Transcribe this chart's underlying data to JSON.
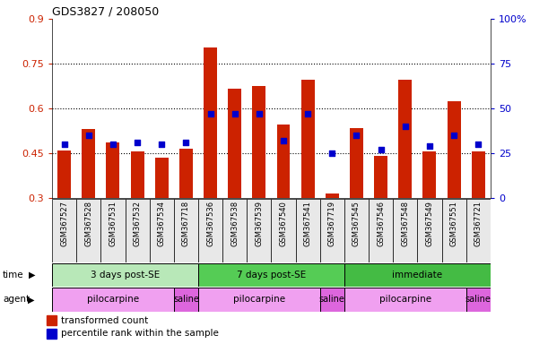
{
  "title": "GDS3827 / 208050",
  "samples": [
    "GSM367527",
    "GSM367528",
    "GSM367531",
    "GSM367532",
    "GSM367534",
    "GSM367718",
    "GSM367536",
    "GSM367538",
    "GSM367539",
    "GSM367540",
    "GSM367541",
    "GSM367719",
    "GSM367545",
    "GSM367546",
    "GSM367548",
    "GSM367549",
    "GSM367551",
    "GSM367721"
  ],
  "bar_values": [
    0.46,
    0.53,
    0.485,
    0.455,
    0.435,
    0.465,
    0.805,
    0.665,
    0.675,
    0.545,
    0.695,
    0.315,
    0.535,
    0.44,
    0.695,
    0.455,
    0.625,
    0.455
  ],
  "dot_values_pct": [
    30,
    35,
    30,
    31,
    30,
    31,
    47,
    47,
    47,
    32,
    47,
    25,
    35,
    27,
    40,
    29,
    35,
    30
  ],
  "ylim": [
    0.3,
    0.9
  ],
  "yticks": [
    0.3,
    0.45,
    0.6,
    0.75,
    0.9
  ],
  "ytick_labels": [
    "0.3",
    "0.45",
    "0.6",
    "0.75",
    "0.9"
  ],
  "y2lim": [
    0,
    100
  ],
  "y2ticks": [
    0,
    25,
    50,
    75,
    100
  ],
  "y2tick_labels": [
    "0",
    "25",
    "50",
    "75",
    "100%"
  ],
  "bar_color": "#cc2200",
  "dot_color": "#0000cc",
  "bar_bottom": 0.3,
  "time_groups": [
    {
      "label": "3 days post-SE",
      "start": 0,
      "end": 6,
      "color": "#b8e8b8"
    },
    {
      "label": "7 days post-SE",
      "start": 6,
      "end": 12,
      "color": "#44cc44"
    },
    {
      "label": "immediate",
      "start": 12,
      "end": 18,
      "color": "#44cc44"
    }
  ],
  "agent_groups": [
    {
      "label": "pilocarpine",
      "start": 0,
      "end": 5,
      "color": "#f0a0f0"
    },
    {
      "label": "saline",
      "start": 5,
      "end": 6,
      "color": "#dd66dd"
    },
    {
      "label": "pilocarpine",
      "start": 6,
      "end": 11,
      "color": "#f0a0f0"
    },
    {
      "label": "saline",
      "start": 11,
      "end": 12,
      "color": "#dd66dd"
    },
    {
      "label": "pilocarpine",
      "start": 12,
      "end": 17,
      "color": "#f0a0f0"
    },
    {
      "label": "saline",
      "start": 17,
      "end": 18,
      "color": "#dd66dd"
    }
  ],
  "legend_bar_label": "transformed count",
  "legend_dot_label": "percentile rank within the sample",
  "bar_color_legend": "#cc2200",
  "dot_color_legend": "#0000cc",
  "ytick_color": "#cc2200",
  "y2tick_color": "#0000cc",
  "fig_width": 6.11,
  "fig_height": 3.84,
  "dpi": 100
}
